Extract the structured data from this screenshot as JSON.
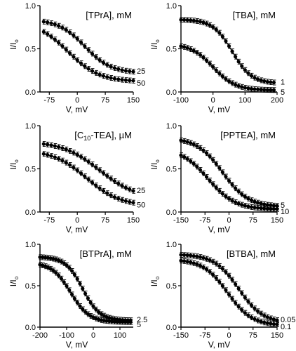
{
  "chart_data": [
    {
      "type": "scatter",
      "title": "[TPrA], mM",
      "xlabel": "V, mV",
      "ylabel": "I/I",
      "ylabel_sub": "o",
      "xlim": [
        -100,
        150
      ],
      "ylim": [
        0,
        1
      ],
      "xticks": [
        -75,
        0,
        75,
        150
      ],
      "yticks": [
        0.0,
        0.5,
        1.0
      ],
      "ytick_labels": [
        "0.0",
        "0.5",
        "1.0"
      ],
      "series": [
        {
          "name": "25",
          "y_top": 0.84,
          "y_bottom": 0.22,
          "v_half": 20,
          "slope": 35,
          "x_from": -90,
          "x_to": 150,
          "step": 10
        },
        {
          "name": "50",
          "y_top": 0.82,
          "y_bottom": 0.12,
          "v_half": -25,
          "slope": 42,
          "x_from": -90,
          "x_to": 150,
          "step": 10
        }
      ]
    },
    {
      "type": "scatter",
      "title": "[TBA], mM",
      "xlabel": "V, mV",
      "ylabel": "I/I",
      "ylabel_sub": "o",
      "xlim": [
        -100,
        200
      ],
      "ylim": [
        0,
        1
      ],
      "xticks": [
        -100,
        0,
        100,
        200
      ],
      "yticks": [
        0.0,
        0.5,
        1.0
      ],
      "ytick_labels": [
        "0.0",
        "0.5",
        "1.0"
      ],
      "series": [
        {
          "name": "1",
          "y_top": 0.84,
          "y_bottom": 0.1,
          "v_half": 60,
          "slope": 30,
          "x_from": -100,
          "x_to": 190,
          "step": 10
        },
        {
          "name": "5",
          "y_top": 0.56,
          "y_bottom": 0.02,
          "v_half": 0,
          "slope": 35,
          "x_from": -100,
          "x_to": 190,
          "step": 10
        }
      ]
    },
    {
      "type": "scatter",
      "title": "[C",
      "title_sub": "10",
      "title_end": "-TEA], µM",
      "xlabel": "V, mV",
      "ylabel": "I/I",
      "ylabel_sub": "o",
      "xlim": [
        -100,
        150
      ],
      "ylim": [
        0,
        1
      ],
      "xticks": [
        -75,
        0,
        75,
        150
      ],
      "yticks": [
        0.0,
        0.5,
        1.0
      ],
      "ytick_labels": [
        "0.0",
        "0.5",
        "1.0"
      ],
      "series": [
        {
          "name": "25",
          "y_top": 0.82,
          "y_bottom": 0.15,
          "v_half": 60,
          "slope": 50,
          "x_from": -90,
          "x_to": 150,
          "step": 10
        },
        {
          "name": "50",
          "y_top": 0.72,
          "y_bottom": 0.07,
          "v_half": 25,
          "slope": 45,
          "x_from": -90,
          "x_to": 150,
          "step": 10
        }
      ]
    },
    {
      "type": "scatter",
      "title": "[PPTEA], mM",
      "xlabel": "V, mV",
      "ylabel": "I/I",
      "ylabel_sub": "o",
      "xlim": [
        -150,
        150
      ],
      "ylim": [
        0,
        1
      ],
      "xticks": [
        -150,
        -75,
        0,
        75,
        150
      ],
      "yticks": [
        0.0,
        0.5,
        1.0
      ],
      "ytick_labels": [
        "0.0",
        "0.5",
        "1.0"
      ],
      "series": [
        {
          "name": "5",
          "y_top": 0.86,
          "y_bottom": 0.06,
          "v_half": -20,
          "slope": 40,
          "x_from": -150,
          "x_to": 150,
          "step": 10
        },
        {
          "name": "10",
          "y_top": 0.74,
          "y_bottom": 0.03,
          "v_half": -65,
          "slope": 42,
          "x_from": -150,
          "x_to": 150,
          "step": 10
        }
      ]
    },
    {
      "type": "scatter",
      "title": "[BTPrA], mM",
      "xlabel": "V, mV",
      "ylabel": "I/I",
      "ylabel_sub": "o",
      "xlim": [
        -200,
        150
      ],
      "ylim": [
        0,
        1
      ],
      "xticks": [
        -200,
        -100,
        0,
        100
      ],
      "yticks": [
        0.0,
        0.5,
        1.0
      ],
      "ytick_labels": [
        "0.0",
        "0.5",
        "1.0"
      ],
      "series": [
        {
          "name": "2.5",
          "y_top": 0.85,
          "y_bottom": 0.08,
          "v_half": -40,
          "slope": 32,
          "x_from": -200,
          "x_to": 140,
          "step": 10
        },
        {
          "name": "5",
          "y_top": 0.78,
          "y_bottom": 0.06,
          "v_half": -85,
          "slope": 35,
          "x_from": -200,
          "x_to": 140,
          "step": 10
        }
      ]
    },
    {
      "type": "scatter",
      "title": "[BTBA], mM",
      "xlabel": "V, mV",
      "ylabel": "I/I",
      "ylabel_sub": "o",
      "xlim": [
        -150,
        150
      ],
      "ylim": [
        0,
        1
      ],
      "xticks": [
        -150,
        -75,
        0,
        75,
        150
      ],
      "yticks": [
        0.0,
        0.5,
        1.0
      ],
      "ytick_labels": [
        "0.0",
        "0.5",
        "1.0"
      ],
      "series": [
        {
          "name": "0.05",
          "y_top": 0.88,
          "y_bottom": 0.05,
          "v_half": 30,
          "slope": 38,
          "x_from": -150,
          "x_to": 150,
          "step": 10
        },
        {
          "name": "0.1",
          "y_top": 0.82,
          "y_bottom": 0.02,
          "v_half": -5,
          "slope": 38,
          "x_from": -150,
          "x_to": 150,
          "step": 10
        }
      ]
    }
  ]
}
